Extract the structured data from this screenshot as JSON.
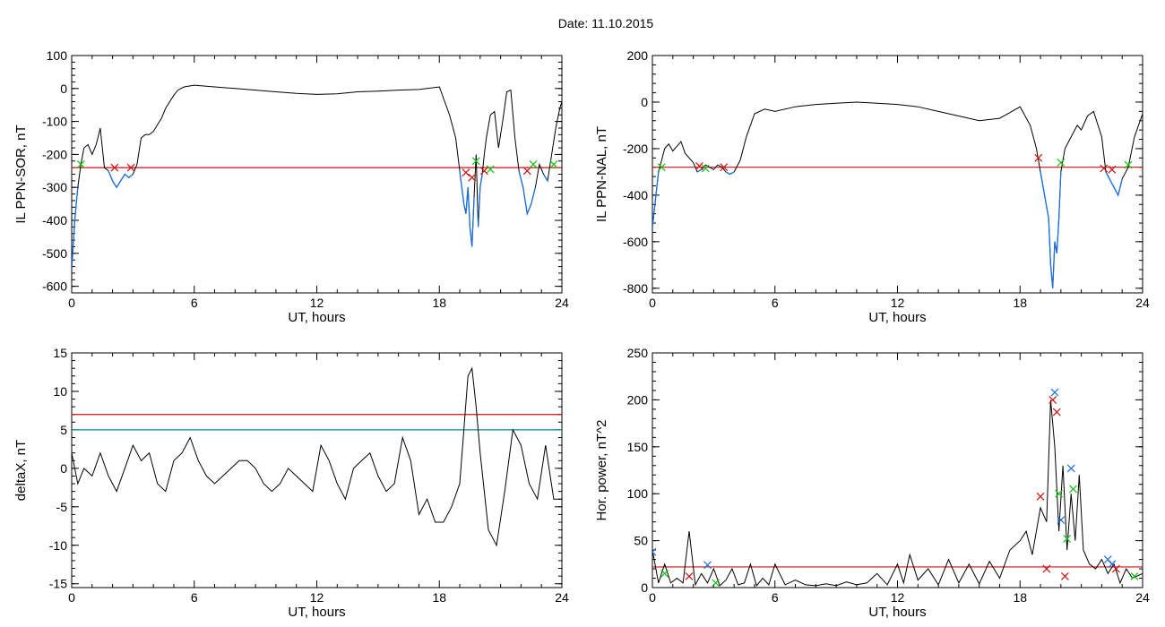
{
  "title": "Date:  11.10.2015",
  "colors": {
    "data": "#000000",
    "threshold": "#e00000",
    "secondary_threshold": "#008c8c",
    "highlight": "#1a6fdc",
    "marker_red": "#d01010",
    "marker_green": "#10c010",
    "marker_blue": "#1a6fdc"
  },
  "chart_data": [
    {
      "type": "line",
      "ylabel": "IL PPN-SOR, nT",
      "xlabel": "UT, hours",
      "xlim": [
        0,
        24
      ],
      "ylim": [
        -620,
        100
      ],
      "xticks": [
        0,
        6,
        12,
        18,
        24
      ],
      "yticks": [
        -600,
        -500,
        -400,
        -300,
        -200,
        -100,
        0,
        100
      ],
      "thresholds": [
        {
          "y": -240,
          "color": "red"
        }
      ],
      "series": [
        {
          "x": [
            0,
            0.15,
            0.3,
            0.45,
            0.6,
            0.8,
            1.0,
            1.2,
            1.4,
            1.6,
            1.8,
            2.0,
            2.2,
            2.4,
            2.6,
            2.8,
            3.0,
            3.2,
            3.4,
            3.6,
            3.8,
            4.0,
            4.2,
            4.4,
            4.6,
            4.8,
            5.0,
            5.2,
            5.5,
            6,
            7,
            8,
            9,
            10,
            11,
            12,
            13,
            14,
            15,
            16,
            17,
            18,
            18.5,
            18.8,
            19.0,
            19.2,
            19.3,
            19.4,
            19.5,
            19.6,
            19.7,
            19.8,
            19.9,
            20.0,
            20.1,
            20.2,
            20.3,
            20.5,
            20.7,
            20.9,
            21.1,
            21.3,
            21.5,
            21.7,
            21.9,
            22.1,
            22.3,
            22.5,
            22.7,
            22.9,
            23.1,
            23.3,
            23.5,
            23.7,
            23.9,
            24
          ],
          "y": [
            -550,
            -400,
            -300,
            -230,
            -180,
            -170,
            -200,
            -170,
            -120,
            -240,
            -250,
            -280,
            -300,
            -280,
            -260,
            -270,
            -260,
            -230,
            -150,
            -140,
            -140,
            -130,
            -110,
            -90,
            -60,
            -40,
            -20,
            -5,
            5,
            10,
            5,
            0,
            -5,
            -10,
            -15,
            -18,
            -16,
            -10,
            -8,
            -5,
            -3,
            5,
            -80,
            -150,
            -250,
            -350,
            -380,
            -300,
            -420,
            -480,
            -330,
            -200,
            -420,
            -300,
            -260,
            -200,
            -150,
            -80,
            -70,
            -180,
            -100,
            -10,
            -5,
            -150,
            -250,
            -300,
            -380,
            -350,
            -300,
            -230,
            -260,
            -280,
            -200,
            -120,
            -60,
            -40
          ]
        }
      ],
      "markers": [
        {
          "x": 0.45,
          "y": -230,
          "color": "green"
        },
        {
          "x": 2.1,
          "y": -240,
          "color": "red"
        },
        {
          "x": 2.9,
          "y": -240,
          "color": "red"
        },
        {
          "x": 19.3,
          "y": -255,
          "color": "red"
        },
        {
          "x": 19.6,
          "y": -270,
          "color": "red"
        },
        {
          "x": 19.8,
          "y": -220,
          "color": "green"
        },
        {
          "x": 20.2,
          "y": -250,
          "color": "red"
        },
        {
          "x": 20.5,
          "y": -245,
          "color": "green"
        },
        {
          "x": 22.3,
          "y": -250,
          "color": "red"
        },
        {
          "x": 22.6,
          "y": -230,
          "color": "green"
        },
        {
          "x": 23.6,
          "y": -230,
          "color": "green"
        }
      ]
    },
    {
      "type": "line",
      "ylabel": "IL PPN-NAL, nT",
      "xlabel": "UT, hours",
      "xlim": [
        0,
        24
      ],
      "ylim": [
        -820,
        200
      ],
      "xticks": [
        0,
        6,
        12,
        18,
        24
      ],
      "yticks": [
        -800,
        -600,
        -400,
        -200,
        0,
        200
      ],
      "thresholds": [
        {
          "y": -280,
          "color": "red"
        }
      ],
      "series": [
        {
          "x": [
            0,
            0.15,
            0.3,
            0.45,
            0.6,
            0.8,
            1.0,
            1.2,
            1.4,
            1.6,
            1.8,
            2.0,
            2.2,
            2.4,
            2.6,
            2.8,
            3.0,
            3.2,
            3.4,
            3.6,
            3.8,
            4.0,
            4.3,
            4.6,
            5.0,
            5.5,
            6,
            7,
            8,
            9,
            10,
            11,
            12,
            13,
            14,
            15,
            16,
            17,
            18,
            18.5,
            18.8,
            19.0,
            19.2,
            19.4,
            19.5,
            19.6,
            19.7,
            19.8,
            19.9,
            20.0,
            20.2,
            20.5,
            20.8,
            21.0,
            21.3,
            21.6,
            22.0,
            22.2,
            22.5,
            22.8,
            23.0,
            23.3,
            23.6,
            24
          ],
          "y": [
            -540,
            -420,
            -300,
            -250,
            -200,
            -180,
            -210,
            -190,
            -170,
            -220,
            -240,
            -260,
            -300,
            -290,
            -270,
            -280,
            -290,
            -270,
            -280,
            -300,
            -310,
            -300,
            -250,
            -150,
            -50,
            -30,
            -40,
            -20,
            -10,
            -5,
            0,
            -5,
            -10,
            -20,
            -40,
            -60,
            -80,
            -70,
            -20,
            -100,
            -200,
            -300,
            -400,
            -500,
            -700,
            -800,
            -600,
            -650,
            -500,
            -300,
            -200,
            -150,
            -100,
            -120,
            -60,
            -40,
            -150,
            -300,
            -350,
            -400,
            -330,
            -280,
            -150,
            -50
          ]
        }
      ],
      "markers": [
        {
          "x": 0.45,
          "y": -280,
          "color": "green"
        },
        {
          "x": 2.3,
          "y": -275,
          "color": "red"
        },
        {
          "x": 2.6,
          "y": -285,
          "color": "green"
        },
        {
          "x": 3.5,
          "y": -280,
          "color": "red"
        },
        {
          "x": 18.9,
          "y": -240,
          "color": "red"
        },
        {
          "x": 20.0,
          "y": -260,
          "color": "green"
        },
        {
          "x": 22.1,
          "y": -285,
          "color": "red"
        },
        {
          "x": 22.5,
          "y": -290,
          "color": "red"
        },
        {
          "x": 23.3,
          "y": -270,
          "color": "green"
        }
      ]
    },
    {
      "type": "line",
      "ylabel": "deltaX, nT",
      "xlabel": "UT, hours",
      "xlim": [
        0,
        24
      ],
      "ylim": [
        -15.5,
        15
      ],
      "xticks": [
        0,
        6,
        12,
        18,
        24
      ],
      "yticks": [
        -15,
        -10,
        -5,
        0,
        5,
        10,
        15
      ],
      "thresholds": [
        {
          "y": 7,
          "color": "red"
        },
        {
          "y": 5,
          "color": "teal"
        }
      ],
      "series": [
        {
          "x": [
            0,
            0.3,
            0.6,
            1.0,
            1.4,
            1.8,
            2.2,
            2.6,
            3.0,
            3.4,
            3.8,
            4.2,
            4.6,
            5.0,
            5.4,
            5.8,
            6.2,
            6.6,
            7.0,
            7.4,
            7.8,
            8.2,
            8.6,
            9.0,
            9.4,
            9.8,
            10.2,
            10.6,
            11.0,
            11.4,
            11.8,
            12.2,
            12.6,
            13.0,
            13.4,
            13.8,
            14.2,
            14.6,
            15.0,
            15.4,
            15.8,
            16.2,
            16.6,
            17.0,
            17.4,
            17.8,
            18.2,
            18.6,
            19.0,
            19.4,
            19.6,
            19.8,
            20.0,
            20.4,
            20.8,
            21.2,
            21.6,
            22.0,
            22.4,
            22.8,
            23.2,
            23.6,
            24
          ],
          "y": [
            2,
            -2,
            0,
            -1,
            2,
            -1,
            -3,
            0,
            3,
            1,
            2,
            -2,
            -3,
            1,
            2,
            4,
            1,
            -1,
            -2,
            -1,
            0,
            1,
            1,
            0,
            -2,
            -3,
            -2,
            0,
            -1,
            -2,
            -3,
            3,
            1,
            -2,
            -4,
            0,
            1,
            2,
            -1,
            -3,
            -2,
            4,
            1,
            -6,
            -4,
            -7,
            -7,
            -5,
            -2,
            12,
            13,
            8,
            2,
            -8,
            -10,
            -3,
            5,
            3,
            -2,
            -4,
            3,
            -4,
            -4
          ]
        }
      ],
      "markers": []
    },
    {
      "type": "line",
      "ylabel": "Hor. power, nT^2",
      "xlabel": "UT, hours",
      "xlim": [
        0,
        24
      ],
      "ylim": [
        0,
        250
      ],
      "xticks": [
        0,
        6,
        12,
        18,
        24
      ],
      "yticks": [
        0,
        50,
        100,
        150,
        200,
        250
      ],
      "thresholds": [
        {
          "y": 22,
          "color": "red"
        }
      ],
      "series": [
        {
          "x": [
            0,
            0.3,
            0.6,
            0.9,
            1.2,
            1.5,
            1.8,
            2.1,
            2.4,
            2.7,
            3.0,
            3.3,
            3.6,
            3.9,
            4.2,
            4.5,
            4.8,
            5.1,
            5.4,
            5.7,
            6.0,
            6.5,
            7,
            7.5,
            8,
            8.5,
            9,
            9.5,
            10,
            10.5,
            11,
            11.5,
            12,
            12.3,
            12.6,
            13,
            13.5,
            14,
            14.5,
            15,
            15.5,
            16,
            16.5,
            17,
            17.5,
            18,
            18.3,
            18.6,
            19.0,
            19.3,
            19.5,
            19.7,
            19.9,
            20.1,
            20.3,
            20.5,
            20.7,
            20.9,
            21.1,
            21.4,
            21.7,
            22.0,
            22.3,
            22.6,
            22.9,
            23.2,
            23.5,
            24
          ],
          "y": [
            40,
            5,
            25,
            5,
            10,
            5,
            60,
            3,
            15,
            5,
            20,
            2,
            8,
            20,
            3,
            5,
            25,
            2,
            10,
            3,
            25,
            3,
            8,
            3,
            2,
            4,
            2,
            6,
            3,
            5,
            15,
            3,
            25,
            5,
            35,
            8,
            20,
            3,
            30,
            5,
            25,
            4,
            28,
            10,
            40,
            50,
            60,
            35,
            85,
            70,
            200,
            150,
            60,
            130,
            40,
            100,
            50,
            120,
            40,
            25,
            20,
            30,
            15,
            25,
            5,
            20,
            10,
            15
          ]
        }
      ],
      "markers": [
        {
          "x": 0.0,
          "y": 38,
          "color": "blue"
        },
        {
          "x": 0.6,
          "y": 15,
          "color": "green"
        },
        {
          "x": 1.8,
          "y": 12,
          "color": "red"
        },
        {
          "x": 2.7,
          "y": 24,
          "color": "blue"
        },
        {
          "x": 3.1,
          "y": 5,
          "color": "green"
        },
        {
          "x": 19.0,
          "y": 97,
          "color": "red"
        },
        {
          "x": 19.3,
          "y": 20,
          "color": "red"
        },
        {
          "x": 19.6,
          "y": 200,
          "color": "red"
        },
        {
          "x": 19.7,
          "y": 208,
          "color": "blue"
        },
        {
          "x": 19.8,
          "y": 187,
          "color": "red"
        },
        {
          "x": 19.9,
          "y": 100,
          "color": "green"
        },
        {
          "x": 20.0,
          "y": 72,
          "color": "blue"
        },
        {
          "x": 20.2,
          "y": 12,
          "color": "red"
        },
        {
          "x": 20.3,
          "y": 52,
          "color": "green"
        },
        {
          "x": 20.5,
          "y": 127,
          "color": "blue"
        },
        {
          "x": 20.6,
          "y": 105,
          "color": "green"
        },
        {
          "x": 22.3,
          "y": 30,
          "color": "blue"
        },
        {
          "x": 22.5,
          "y": 25,
          "color": "blue"
        },
        {
          "x": 22.7,
          "y": 20,
          "color": "red"
        },
        {
          "x": 23.6,
          "y": 12,
          "color": "green"
        }
      ]
    }
  ]
}
